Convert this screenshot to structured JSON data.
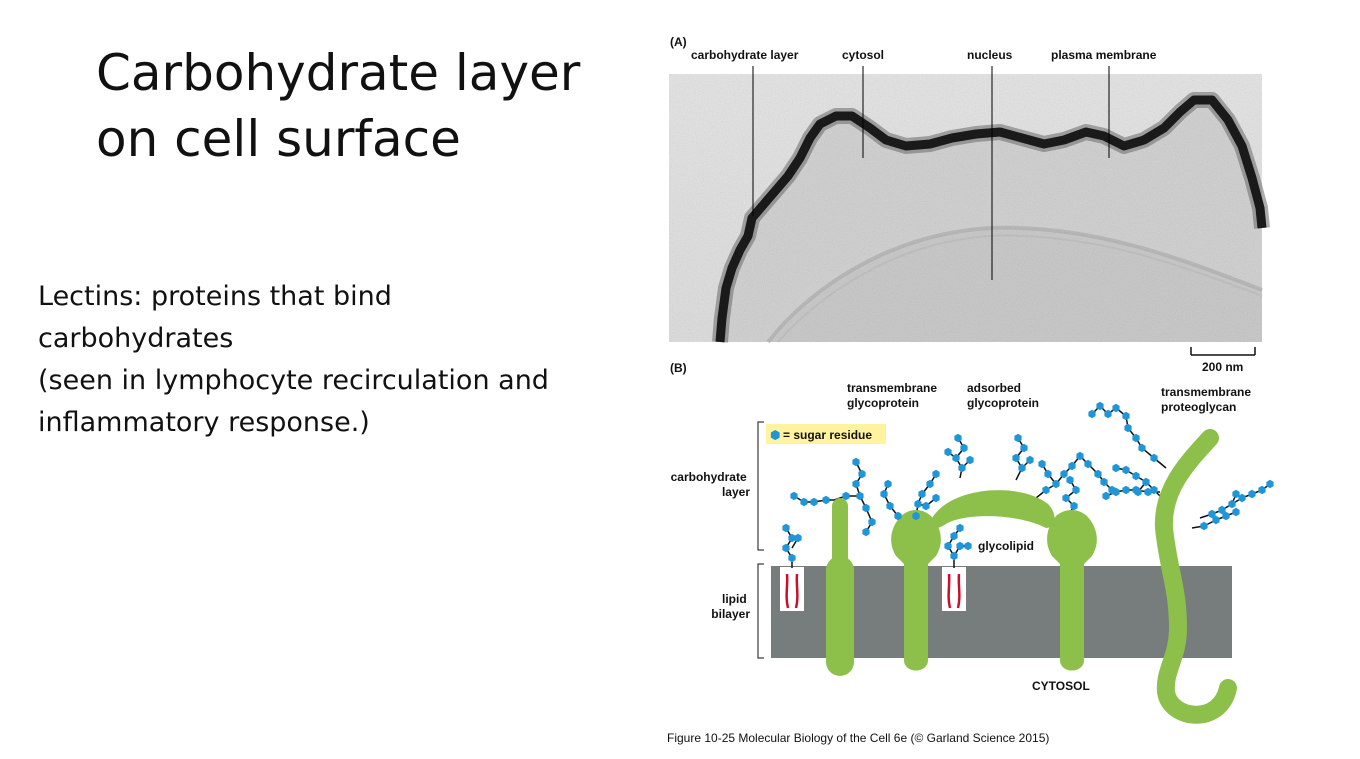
{
  "slide": {
    "title_lines": [
      "Carbohydrate layer",
      "on cell surface"
    ],
    "body_lines": [
      "Lectins: proteins that bind",
      "carbohydrates",
      "(seen in lymphocyte recirculation and",
      "inflammatory response.)"
    ]
  },
  "figure": {
    "panel_a": {
      "letter": "(A)",
      "labels": {
        "carbohydrate_layer": "carbohydrate layer",
        "cytosol": "cytosol",
        "nucleus": "nucleus",
        "plasma_membrane": "plasma membrane"
      },
      "scale_bar": "200 nm"
    },
    "panel_b": {
      "letter": "(B)",
      "legend": {
        "symbol": "⬢",
        "text": "= sugar residue"
      },
      "labels": {
        "transmembrane_glycoprotein": [
          "transmembrane",
          "glycoprotein"
        ],
        "adsorbed_glycoprotein": [
          "adsorbed",
          "glycoprotein"
        ],
        "transmembrane_proteoglycan": [
          "transmembrane",
          "proteoglycan"
        ],
        "carbohydrate_layer": [
          "carbohydrate",
          "layer"
        ],
        "glycolipid": "glycolipid",
        "lipid_bilayer": [
          "lipid",
          "bilayer"
        ],
        "cytosol": "CYTOSOL"
      }
    },
    "caption": "Figure 10-25  Molecular Biology of the Cell 6e (© Garland Science 2015)",
    "colors": {
      "protein": "#8dc04a",
      "sugar": "#1e96d8",
      "bilayer": "#777d7c",
      "lipid_tail": "#c8102e",
      "legend_bg": "#fff3a0"
    }
  }
}
